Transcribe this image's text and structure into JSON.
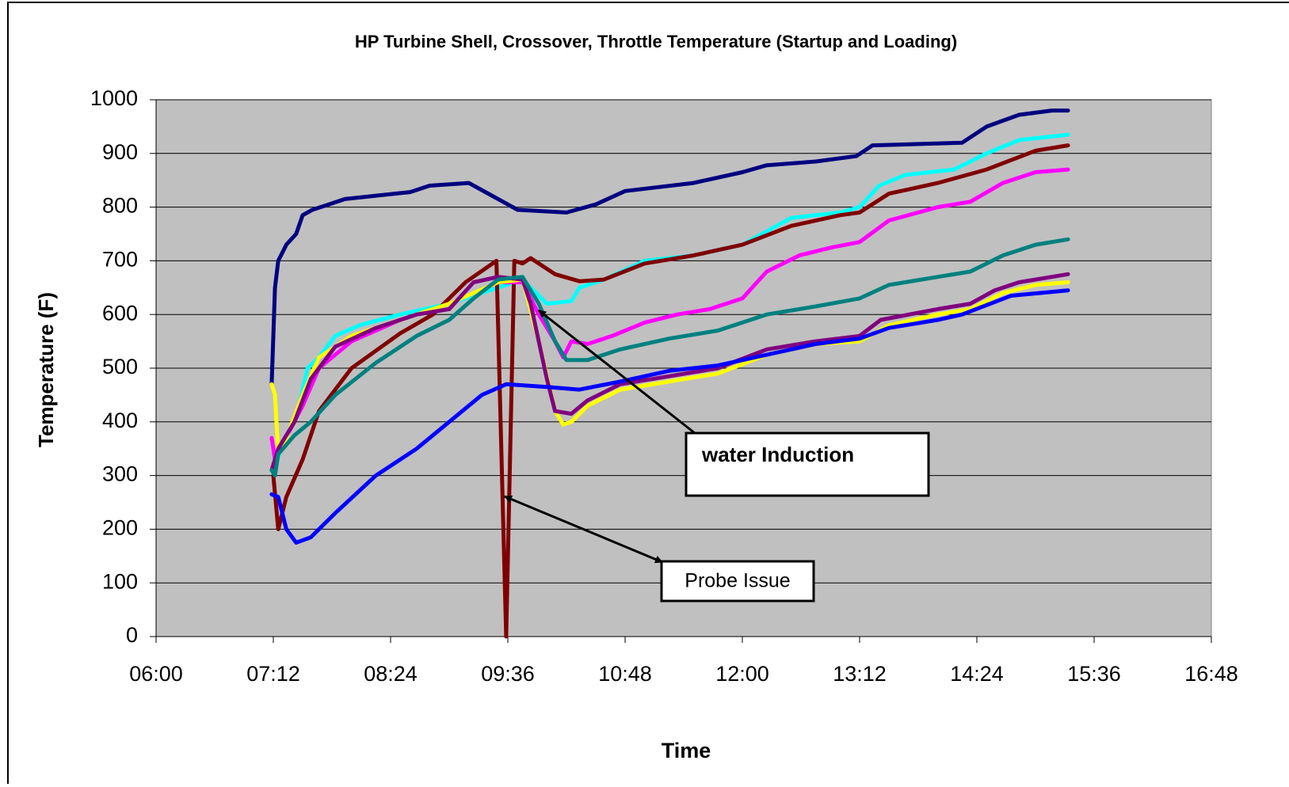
{
  "chart_data": {
    "type": "line",
    "title": "HP Turbine Shell, Crossover, Throttle Temperature (Startup and Loading)",
    "x_label": "Time",
    "y_label": "Temperature (F)",
    "xlim": [
      "06:00",
      "16:48"
    ],
    "xticks": [
      "06:00",
      "07:12",
      "08:24",
      "09:36",
      "10:48",
      "12:00",
      "13:12",
      "14:24",
      "15:36",
      "16:48"
    ],
    "ylim": [
      0,
      1000
    ],
    "yticks": [
      0,
      100,
      200,
      300,
      400,
      500,
      600,
      700,
      800,
      900,
      1000
    ],
    "grid": true,
    "background": "#c0c0c0",
    "series": [
      {
        "color": "#000080",
        "x": [
          "07:11",
          "07:13",
          "07:15",
          "07:20",
          "07:26",
          "07:30",
          "07:36",
          "07:46",
          "07:56",
          "08:36",
          "08:48",
          "09:12",
          "09:27",
          "09:42",
          "10:12",
          "10:30",
          "10:48",
          "11:30",
          "12:00",
          "12:15",
          "12:45",
          "13:10",
          "13:20",
          "14:15",
          "14:30",
          "14:50",
          "15:10",
          "15:20"
        ],
        "values": [
          470,
          650,
          700,
          730,
          750,
          785,
          795,
          805,
          815,
          828,
          840,
          845,
          820,
          795,
          790,
          805,
          830,
          845,
          865,
          878,
          885,
          895,
          915,
          920,
          950,
          972,
          980,
          980
        ]
      },
      {
        "color": "#00ffff",
        "x": [
          "07:12",
          "07:18",
          "07:27",
          "07:33",
          "07:40",
          "07:50",
          "08:05",
          "08:30",
          "09:00",
          "09:30",
          "09:45",
          "10:00",
          "10:15",
          "10:20",
          "10:35",
          "11:00",
          "11:30",
          "12:00",
          "12:30",
          "13:00",
          "13:12",
          "13:24",
          "13:40",
          "14:10",
          "14:30",
          "14:50",
          "15:20"
        ],
        "values": [
          310,
          360,
          420,
          500,
          520,
          560,
          580,
          600,
          620,
          650,
          665,
          620,
          625,
          650,
          665,
          700,
          710,
          730,
          780,
          790,
          800,
          840,
          860,
          870,
          900,
          925,
          935
        ]
      },
      {
        "color": "#800000",
        "x": [
          "07:12",
          "07:15",
          "07:20",
          "07:30",
          "07:40",
          "08:00",
          "08:30",
          "08:50",
          "09:10",
          "09:29",
          "09:35",
          "09:40",
          "09:45",
          "09:50",
          "10:05",
          "10:20",
          "10:35",
          "11:00",
          "11:30",
          "12:00",
          "12:30",
          "13:00",
          "13:12",
          "13:30",
          "14:00",
          "14:30",
          "15:00",
          "15:20"
        ],
        "values": [
          300,
          200,
          260,
          330,
          420,
          500,
          565,
          600,
          660,
          700,
          0,
          700,
          695,
          705,
          675,
          662,
          665,
          695,
          710,
          730,
          765,
          785,
          790,
          825,
          845,
          870,
          905,
          915
        ]
      },
      {
        "color": "#ff00ff",
        "x": [
          "07:11",
          "07:13",
          "07:18",
          "07:30",
          "07:40",
          "08:00",
          "08:30",
          "09:00",
          "09:30",
          "09:45",
          "09:55",
          "10:05",
          "10:10",
          "10:15",
          "10:25",
          "10:40",
          "11:00",
          "11:20",
          "11:40",
          "12:00",
          "12:15",
          "12:35",
          "12:55",
          "13:12",
          "13:30",
          "14:00",
          "14:20",
          "14:40",
          "15:00",
          "15:20"
        ],
        "values": [
          370,
          330,
          360,
          430,
          500,
          550,
          590,
          620,
          660,
          660,
          600,
          550,
          520,
          550,
          545,
          560,
          585,
          600,
          610,
          630,
          680,
          710,
          725,
          735,
          775,
          800,
          810,
          845,
          865,
          870
        ]
      },
      {
        "color": "#ffff00",
        "x": [
          "07:11",
          "07:13",
          "07:15",
          "07:20",
          "07:30",
          "07:40",
          "08:00",
          "08:30",
          "09:00",
          "09:30",
          "09:45",
          "09:55",
          "10:05",
          "10:10",
          "10:15",
          "10:25",
          "10:45",
          "11:15",
          "11:45",
          "12:15",
          "12:45",
          "13:12",
          "13:30",
          "14:00",
          "14:20",
          "14:40",
          "15:00",
          "15:20"
        ],
        "values": [
          470,
          450,
          340,
          370,
          450,
          520,
          560,
          590,
          620,
          660,
          665,
          550,
          420,
          395,
          400,
          430,
          460,
          475,
          490,
          525,
          545,
          550,
          580,
          600,
          610,
          640,
          655,
          660
        ]
      },
      {
        "color": "#800080",
        "x": [
          "07:11",
          "07:15",
          "07:25",
          "07:35",
          "07:50",
          "08:15",
          "08:40",
          "09:00",
          "09:15",
          "09:30",
          "09:45",
          "09:50",
          "10:00",
          "10:05",
          "10:15",
          "10:25",
          "10:45",
          "11:15",
          "11:45",
          "12:15",
          "12:45",
          "13:12",
          "13:25",
          "14:00",
          "14:20",
          "14:35",
          "14:50",
          "15:20"
        ],
        "values": [
          310,
          350,
          400,
          480,
          540,
          575,
          600,
          610,
          660,
          670,
          665,
          620,
          480,
          420,
          415,
          440,
          470,
          485,
          500,
          535,
          550,
          560,
          590,
          610,
          620,
          645,
          660,
          675
        ]
      },
      {
        "color": "#008080",
        "x": [
          "07:11",
          "07:13",
          "07:15",
          "07:25",
          "07:35",
          "07:50",
          "08:15",
          "08:40",
          "09:00",
          "09:15",
          "09:30",
          "09:45",
          "09:55",
          "10:05",
          "10:12",
          "10:25",
          "10:45",
          "11:15",
          "11:45",
          "12:15",
          "12:45",
          "13:12",
          "13:30",
          "14:00",
          "14:20",
          "14:40",
          "15:00",
          "15:20"
        ],
        "values": [
          310,
          300,
          340,
          375,
          400,
          450,
          510,
          560,
          590,
          630,
          665,
          670,
          620,
          550,
          515,
          515,
          535,
          555,
          570,
          600,
          615,
          630,
          655,
          670,
          680,
          710,
          730,
          740
        ]
      },
      {
        "color": "#0000ff",
        "x": [
          "07:11",
          "07:15",
          "07:20",
          "07:26",
          "07:35",
          "07:50",
          "08:15",
          "08:40",
          "09:00",
          "09:20",
          "09:35",
          "10:00",
          "10:20",
          "10:45",
          "11:15",
          "11:45",
          "12:15",
          "12:45",
          "13:12",
          "13:30",
          "14:00",
          "14:15",
          "14:45",
          "15:20"
        ],
        "values": [
          265,
          260,
          200,
          175,
          185,
          230,
          300,
          350,
          400,
          450,
          470,
          465,
          460,
          475,
          495,
          505,
          525,
          545,
          555,
          575,
          590,
          600,
          635,
          645
        ]
      }
    ],
    "annotations": [
      {
        "text": "water Induction"
      },
      {
        "text": "Probe Issue"
      }
    ]
  }
}
